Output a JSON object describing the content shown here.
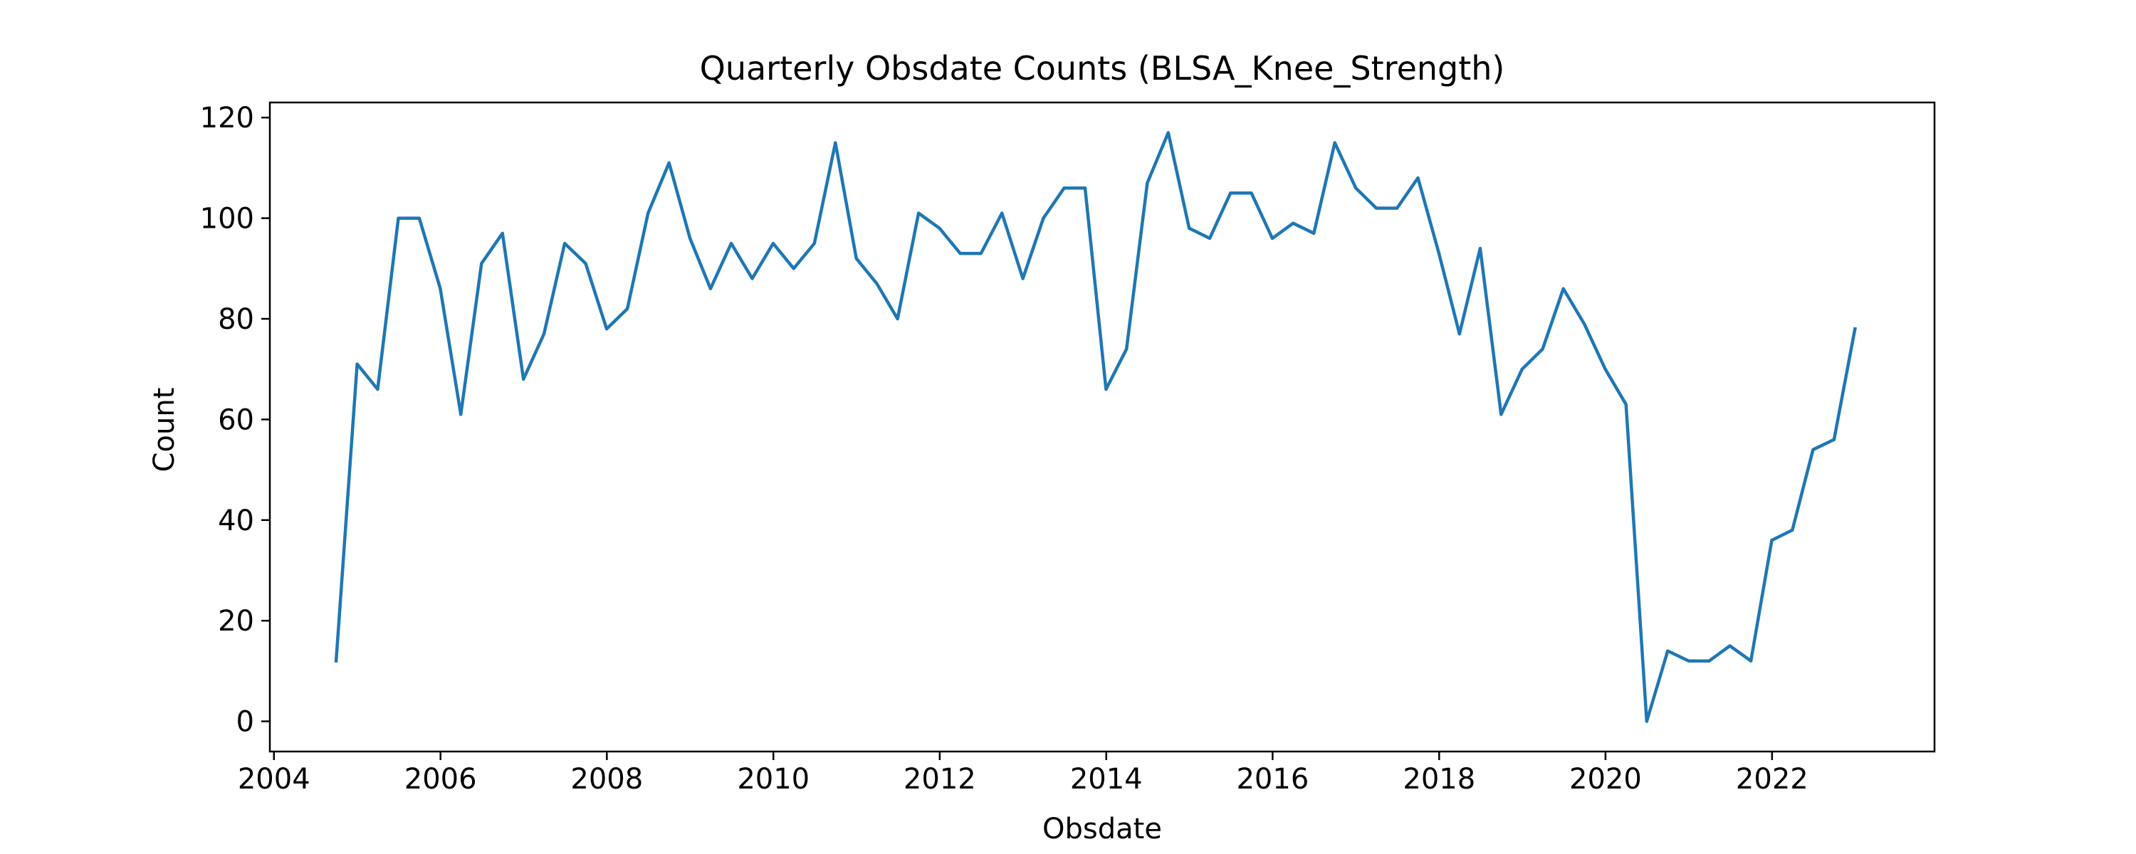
{
  "chart_data": {
    "type": "line",
    "title": "Quarterly Obsdate Counts (BLSA_Knee_Strength)",
    "xlabel": "Obsdate",
    "ylabel": "Count",
    "xlim": [
      "2003-12-14",
      "2023-12-15"
    ],
    "ylim": [
      -6,
      123
    ],
    "x_ticks": [
      "2004",
      "2006",
      "2008",
      "2010",
      "2012",
      "2014",
      "2016",
      "2018",
      "2020",
      "2022"
    ],
    "y_ticks": [
      0,
      20,
      40,
      60,
      80,
      100,
      120
    ],
    "grid": false,
    "color": "#1f77b4",
    "x": [
      "2004-09-30",
      "2004-12-31",
      "2005-03-31",
      "2005-06-30",
      "2005-09-30",
      "2005-12-31",
      "2006-03-31",
      "2006-06-30",
      "2006-09-30",
      "2006-12-31",
      "2007-03-31",
      "2007-06-30",
      "2007-09-30",
      "2007-12-31",
      "2008-03-31",
      "2008-06-30",
      "2008-09-30",
      "2008-12-31",
      "2009-03-31",
      "2009-06-30",
      "2009-09-30",
      "2009-12-31",
      "2010-03-31",
      "2010-06-30",
      "2010-09-30",
      "2010-12-31",
      "2011-03-31",
      "2011-06-30",
      "2011-09-30",
      "2011-12-31",
      "2012-03-31",
      "2012-06-30",
      "2012-09-30",
      "2012-12-31",
      "2013-03-31",
      "2013-06-30",
      "2013-09-30",
      "2013-12-31",
      "2014-03-31",
      "2014-06-30",
      "2014-09-30",
      "2014-12-31",
      "2015-03-31",
      "2015-06-30",
      "2015-09-30",
      "2015-12-31",
      "2016-03-31",
      "2016-06-30",
      "2016-09-30",
      "2016-12-31",
      "2017-03-31",
      "2017-06-30",
      "2017-09-30",
      "2017-12-31",
      "2018-03-31",
      "2018-06-30",
      "2018-09-30",
      "2018-12-31",
      "2019-03-31",
      "2019-06-30",
      "2019-09-30",
      "2019-12-31",
      "2020-03-31",
      "2020-06-30",
      "2020-09-30",
      "2020-12-31",
      "2021-03-31",
      "2021-06-30",
      "2021-09-30",
      "2021-12-31",
      "2022-03-31",
      "2022-06-30",
      "2022-09-30",
      "2022-12-31"
    ],
    "values": [
      12,
      71,
      66,
      100,
      100,
      86,
      61,
      91,
      97,
      68,
      77,
      95,
      91,
      78,
      82,
      101,
      111,
      96,
      86,
      95,
      88,
      95,
      90,
      95,
      115,
      92,
      87,
      80,
      101,
      98,
      93,
      93,
      101,
      88,
      100,
      106,
      106,
      66,
      74,
      107,
      117,
      98,
      96,
      105,
      105,
      96,
      99,
      97,
      115,
      106,
      102,
      102,
      108,
      93,
      77,
      94,
      61,
      70,
      74,
      86,
      79,
      70,
      63,
      0,
      14,
      12,
      12,
      15,
      12,
      36,
      38,
      54,
      56,
      78
    ]
  }
}
